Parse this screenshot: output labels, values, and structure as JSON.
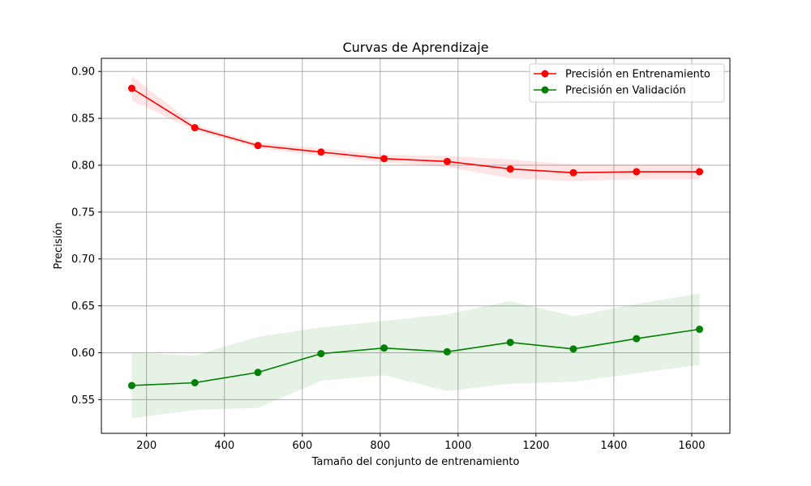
{
  "chart_data": {
    "type": "line",
    "title": "Curvas de Aprendizaje",
    "xlabel": "Tamaño del conjunto de entrenamiento",
    "ylabel": "Precisión",
    "xlim": [
      84,
      1698
    ],
    "ylim": [
      0.514,
      0.914
    ],
    "xticks": [
      200,
      400,
      600,
      800,
      1000,
      1200,
      1400,
      1600
    ],
    "yticks": [
      0.55,
      0.6,
      0.65,
      0.7,
      0.75,
      0.8,
      0.85,
      0.9
    ],
    "xtick_labels": [
      "200",
      "400",
      "600",
      "800",
      "1000",
      "1200",
      "1400",
      "1600"
    ],
    "ytick_labels": [
      "0.55",
      "0.60",
      "0.65",
      "0.70",
      "0.75",
      "0.80",
      "0.85",
      "0.90"
    ],
    "grid": true,
    "legend_position": "top-right",
    "x": [
      162,
      324,
      486,
      648,
      810,
      972,
      1134,
      1296,
      1458,
      1620
    ],
    "series": [
      {
        "name": "Precisión en Entrenamiento",
        "color": "#ff0000",
        "band_color": "#ff0000",
        "marker": "circle",
        "values": [
          0.882,
          0.84,
          0.821,
          0.814,
          0.807,
          0.804,
          0.796,
          0.792,
          0.793,
          0.793
        ],
        "band_lower": [
          0.869,
          0.837,
          0.818,
          0.81,
          0.803,
          0.798,
          0.786,
          0.783,
          0.785,
          0.785
        ],
        "band_upper": [
          0.895,
          0.843,
          0.824,
          0.818,
          0.811,
          0.81,
          0.806,
          0.801,
          0.801,
          0.801
        ]
      },
      {
        "name": "Precisión en Validación",
        "color": "#008000",
        "band_color": "#008000",
        "marker": "circle",
        "values": [
          0.565,
          0.568,
          0.579,
          0.599,
          0.605,
          0.601,
          0.611,
          0.604,
          0.615,
          0.625
        ],
        "band_lower": [
          0.53,
          0.539,
          0.541,
          0.57,
          0.576,
          0.559,
          0.567,
          0.569,
          0.578,
          0.587
        ],
        "band_upper": [
          0.6,
          0.597,
          0.617,
          0.627,
          0.634,
          0.641,
          0.655,
          0.639,
          0.652,
          0.663
        ]
      }
    ]
  }
}
